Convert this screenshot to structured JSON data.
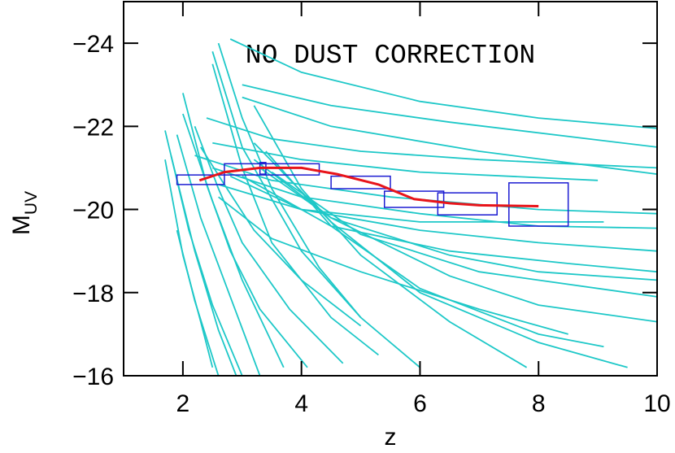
{
  "chart_data": {
    "type": "line",
    "annotation": "NO DUST CORRECTION",
    "xlabel": "z",
    "ylabel": "M",
    "ylabel_sub": "UV",
    "xlim": [
      1,
      10
    ],
    "xticks": [
      2,
      4,
      6,
      8,
      10
    ],
    "ylim": [
      -16,
      -25
    ],
    "yticks": [
      {
        "value": -24,
        "label": "−24"
      },
      {
        "value": -22,
        "label": "−22"
      },
      {
        "value": -20,
        "label": "−20"
      },
      {
        "value": -18,
        "label": "−18"
      },
      {
        "value": -16,
        "label": "−16"
      }
    ],
    "curve_color": "#1ec8c8",
    "curves": [
      {
        "x": [
          2.8,
          4,
          6,
          8,
          10
        ],
        "y": [
          -24.1,
          -23.3,
          -22.6,
          -22.2,
          -21.95
        ]
      },
      {
        "x": [
          3,
          4.5,
          6.5,
          10
        ],
        "y": [
          -23.0,
          -22.5,
          -22.1,
          -21.5
        ]
      },
      {
        "x": [
          3,
          4.5,
          7,
          10
        ],
        "y": [
          -22.7,
          -22.0,
          -21.4,
          -20.85
        ]
      },
      {
        "x": [
          2.4,
          3.5,
          5,
          7,
          10
        ],
        "y": [
          -22.2,
          -21.7,
          -21.4,
          -21.2,
          -21.0
        ]
      },
      {
        "x": [
          2.5,
          4,
          6,
          9
        ],
        "y": [
          -21.6,
          -21.2,
          -20.9,
          -20.7
        ]
      },
      {
        "x": [
          2.2,
          3.5,
          5.5,
          8,
          10
        ],
        "y": [
          -21.3,
          -20.7,
          -20.3,
          -20.0,
          -19.9
        ]
      },
      {
        "x": [
          2.5,
          4,
          6,
          8,
          10
        ],
        "y": [
          -21.0,
          -20.3,
          -19.9,
          -19.6,
          -19.55
        ]
      },
      {
        "x": [
          2.6,
          4,
          6,
          9.1
        ],
        "y": [
          -20.6,
          -20.0,
          -19.7,
          -19.7
        ]
      },
      {
        "x": [
          2.8,
          4,
          6,
          8,
          10
        ],
        "y": [
          -20.8,
          -20.0,
          -19.5,
          -19.2,
          -19.0
        ]
      },
      {
        "x": [
          3,
          4.5,
          6.5,
          8.5,
          10
        ],
        "y": [
          -20.8,
          -19.6,
          -19.0,
          -18.7,
          -18.5
        ]
      },
      {
        "x": [
          3.3,
          4.5,
          6.5,
          8,
          10
        ],
        "y": [
          -21.0,
          -19.8,
          -18.9,
          -18.5,
          -18.3
        ]
      },
      {
        "x": [
          3.5,
          5,
          7,
          10
        ],
        "y": [
          -20.9,
          -19.4,
          -18.5,
          -17.9
        ]
      },
      {
        "x": [
          3.2,
          4.5,
          6.5,
          8,
          10
        ],
        "y": [
          -21.2,
          -19.8,
          -18.4,
          -17.7,
          -17.3
        ]
      },
      {
        "x": [
          3.4,
          4.5,
          6,
          8,
          9.1
        ],
        "y": [
          -21.4,
          -19.6,
          -18.1,
          -17.0,
          -16.7
        ]
      },
      {
        "x": [
          3.2,
          4.5,
          6,
          8,
          9.5
        ],
        "y": [
          -21.6,
          -19.7,
          -18.0,
          -16.8,
          -16.2
        ]
      },
      {
        "x": [
          3.2,
          4,
          5,
          6.5,
          7.8
        ],
        "y": [
          -22.5,
          -20.5,
          -18.9,
          -17.3,
          -16.2
        ]
      },
      {
        "x": [
          2.5,
          3,
          4,
          5,
          6
        ],
        "y": [
          -23.8,
          -21.5,
          -19.0,
          -17.4,
          -16.2
        ]
      },
      {
        "x": [
          2.5,
          3,
          3.5,
          4.5,
          5.3
        ],
        "y": [
          -23.5,
          -21.0,
          -19.2,
          -17.4,
          -16.5
        ]
      },
      {
        "x": [
          2.2,
          2.6,
          3,
          3.8,
          4.7
        ],
        "y": [
          -22.0,
          -20.5,
          -19.2,
          -17.6,
          -16.3
        ]
      },
      {
        "x": [
          2.0,
          2.5,
          3,
          3.7
        ],
        "y": [
          -22.3,
          -20.2,
          -18.3,
          -16.2
        ]
      },
      {
        "x": [
          1.9,
          2.3,
          2.8,
          3.3
        ],
        "y": [
          -21.8,
          -19.8,
          -17.9,
          -16.0
        ]
      },
      {
        "x": [
          1.7,
          2.1,
          2.5,
          3.0
        ],
        "y": [
          -21.9,
          -19.5,
          -17.7,
          -16.0
        ]
      },
      {
        "x": [
          1.8,
          2.2,
          2.6,
          2.9
        ],
        "y": [
          -21.3,
          -19.0,
          -17.1,
          -16.0
        ]
      },
      {
        "x": [
          1.7,
          2.0,
          2.3,
          2.5
        ],
        "y": [
          -21.2,
          -18.9,
          -17.3,
          -16.2
        ]
      },
      {
        "x": [
          2.0,
          2.4,
          2.8,
          3.3,
          4.1
        ],
        "y": [
          -22.8,
          -20.6,
          -19.0,
          -17.6,
          -16.2
        ]
      },
      {
        "x": [
          2.6,
          3,
          3.5,
          4.3,
          5
        ],
        "y": [
          -24.0,
          -22.2,
          -20.5,
          -18.6,
          -17.4
        ]
      },
      {
        "x": [
          2.3,
          2.7,
          3.2,
          4,
          5
        ],
        "y": [
          -21.5,
          -20.6,
          -19.5,
          -18.3,
          -17.2
        ]
      },
      {
        "x": [
          2.6,
          3.5,
          5,
          7,
          8.5
        ],
        "y": [
          -20.3,
          -19.3,
          -18.5,
          -17.6,
          -17.0
        ]
      },
      {
        "x": [
          1.9,
          2.2,
          2.6
        ],
        "y": [
          -19.5,
          -17.8,
          -16.0
        ]
      }
    ],
    "boxes": {
      "color": "#1c1cd2",
      "items": [
        {
          "x": [
            1.9,
            2.7
          ],
          "y": [
            -20.83,
            -20.6
          ]
        },
        {
          "x": [
            2.7,
            4.3
          ],
          "y": [
            -21.1,
            -20.83
          ]
        },
        {
          "x": [
            3.3,
            3.4
          ],
          "y": [
            -21.13,
            -20.85
          ]
        },
        {
          "x": [
            4.5,
            5.5
          ],
          "y": [
            -20.8,
            -20.5
          ]
        },
        {
          "x": [
            5.4,
            6.4
          ],
          "y": [
            -20.44,
            -20.05
          ]
        },
        {
          "x": [
            6.3,
            7.3
          ],
          "y": [
            -20.4,
            -19.87
          ]
        },
        {
          "x": [
            7.5,
            8.5
          ],
          "y": [
            -20.64,
            -19.6
          ]
        }
      ]
    },
    "line": {
      "color": "#e8141a",
      "x": [
        2.28,
        2.7,
        3.3,
        4,
        4.6,
        5.3,
        5.9,
        6.5,
        7,
        8
      ],
      "y": [
        -20.7,
        -20.9,
        -21.0,
        -21.0,
        -20.85,
        -20.6,
        -20.25,
        -20.15,
        -20.1,
        -20.08
      ]
    }
  }
}
